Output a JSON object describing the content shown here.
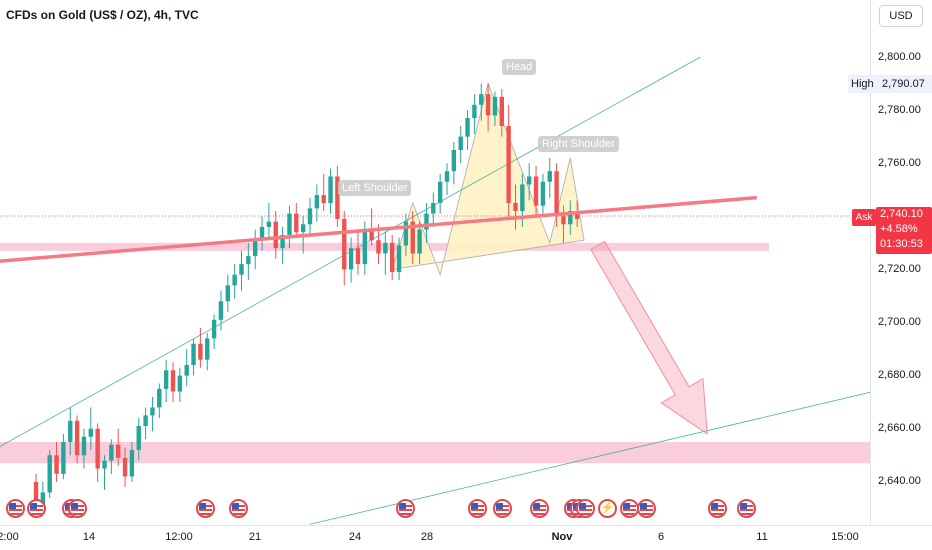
{
  "header": {
    "title": "CFDs on Gold (US$ / OZ), 4h, TVC"
  },
  "price_axis": {
    "currency": "USD",
    "ticks": [
      "2,800.00",
      "2,780.00",
      "2,760.00",
      "2,720.00",
      "2,700.00",
      "2,680.00",
      "2,660.00",
      "2,640.00"
    ],
    "high": {
      "label": "High",
      "value": "2,790.07"
    },
    "ask": {
      "label": "Ask",
      "price": "2,740.10",
      "change": "+4.58%",
      "countdown": "01:30:53"
    }
  },
  "time_axis": {
    "labels": [
      "2:00",
      "14",
      "12:00",
      "21",
      "24",
      "28",
      "Nov",
      "6",
      "11",
      "15:00"
    ],
    "bold_label": "Nov"
  },
  "annotations": {
    "head": "Head",
    "left_shoulder": "Left Shoulder",
    "right_shoulder": "Right Shoulder"
  },
  "event_icons": [
    "us-flag-icon",
    "us-flag-icon",
    "us-flag-icon",
    "us-flag-icon",
    "us-flag-icon",
    "us-flag-icon",
    "us-flag-icon",
    "us-flag-icon",
    "us-flag-icon",
    "us-flag-icon",
    "us-flag-icon",
    "us-flag-icon",
    "us-flag-icon",
    "lightning-icon",
    "us-flag-icon",
    "us-flag-icon",
    "us-flag-icon",
    "us-flag-icon"
  ],
  "colors": {
    "up": "#26a69a",
    "down": "#ef5350",
    "neckline": "#f47a84",
    "trendline": "#26a69a",
    "zone": "#f8bbd0",
    "pattern_fill": "#fff3c4",
    "arrow": "#f48fa0",
    "current_price_line": "#f23645"
  },
  "chart_data": {
    "type": "candlestick",
    "title": "CFDs on Gold (US$ / OZ), 4h, TVC",
    "y_ticks": [
      2640,
      2660,
      2680,
      2700,
      2720,
      2760,
      2780,
      2800
    ],
    "y_range": [
      2630,
      2812
    ],
    "current_price": 2740.1,
    "high": 2790.07,
    "patterns": [
      "Left Shoulder",
      "Head",
      "Right Shoulder"
    ],
    "candles": [
      [
        2640,
        2643,
        2628,
        2631
      ],
      [
        2631,
        2640,
        2630,
        2636
      ],
      [
        2636,
        2652,
        2634,
        2650
      ],
      [
        2650,
        2655,
        2640,
        2643
      ],
      [
        2643,
        2658,
        2641,
        2655
      ],
      [
        2655,
        2668,
        2650,
        2663
      ],
      [
        2663,
        2665,
        2647,
        2650
      ],
      [
        2650,
        2660,
        2645,
        2657
      ],
      [
        2657,
        2668,
        2652,
        2660
      ],
      [
        2660,
        2662,
        2640,
        2645
      ],
      [
        2645,
        2650,
        2637,
        2648
      ],
      [
        2648,
        2656,
        2643,
        2654
      ],
      [
        2654,
        2660,
        2646,
        2649
      ],
      [
        2649,
        2653,
        2638,
        2642
      ],
      [
        2642,
        2655,
        2640,
        2652
      ],
      [
        2652,
        2664,
        2648,
        2661
      ],
      [
        2661,
        2668,
        2656,
        2665
      ],
      [
        2665,
        2672,
        2659,
        2668
      ],
      [
        2668,
        2677,
        2664,
        2675
      ],
      [
        2675,
        2686,
        2670,
        2682
      ],
      [
        2682,
        2685,
        2670,
        2674
      ],
      [
        2674,
        2683,
        2670,
        2680
      ],
      [
        2680,
        2690,
        2676,
        2684
      ],
      [
        2684,
        2694,
        2680,
        2692
      ],
      [
        2692,
        2698,
        2683,
        2686
      ],
      [
        2686,
        2696,
        2682,
        2694
      ],
      [
        2694,
        2703,
        2690,
        2701
      ],
      [
        2701,
        2712,
        2697,
        2708
      ],
      [
        2708,
        2718,
        2704,
        2714
      ],
      [
        2714,
        2722,
        2709,
        2718
      ],
      [
        2718,
        2727,
        2712,
        2722
      ],
      [
        2722,
        2730,
        2716,
        2725
      ],
      [
        2725,
        2735,
        2720,
        2731
      ],
      [
        2731,
        2740,
        2727,
        2736
      ],
      [
        2736,
        2745,
        2731,
        2738
      ],
      [
        2738,
        2742,
        2724,
        2728
      ],
      [
        2728,
        2736,
        2722,
        2733
      ],
      [
        2733,
        2744,
        2728,
        2741
      ],
      [
        2741,
        2745,
        2732,
        2734
      ],
      [
        2734,
        2740,
        2726,
        2737
      ],
      [
        2737,
        2747,
        2733,
        2743
      ],
      [
        2743,
        2752,
        2738,
        2748
      ],
      [
        2748,
        2756,
        2742,
        2745
      ],
      [
        2745,
        2758,
        2741,
        2755
      ],
      [
        2755,
        2759,
        2736,
        2739
      ],
      [
        2739,
        2742,
        2714,
        2720
      ],
      [
        2720,
        2732,
        2715,
        2728
      ],
      [
        2728,
        2734,
        2718,
        2722
      ],
      [
        2722,
        2738,
        2718,
        2735
      ],
      [
        2735,
        2743,
        2729,
        2731
      ],
      [
        2731,
        2737,
        2722,
        2726
      ],
      [
        2726,
        2734,
        2718,
        2730
      ],
      [
        2730,
        2733,
        2716,
        2719
      ],
      [
        2719,
        2732,
        2716,
        2729
      ],
      [
        2729,
        2741,
        2725,
        2738
      ],
      [
        2738,
        2742,
        2722,
        2726
      ],
      [
        2726,
        2738,
        2722,
        2735
      ],
      [
        2735,
        2745,
        2730,
        2741
      ],
      [
        2741,
        2749,
        2736,
        2745
      ],
      [
        2745,
        2756,
        2741,
        2753
      ],
      [
        2753,
        2760,
        2748,
        2757
      ],
      [
        2757,
        2768,
        2752,
        2765
      ],
      [
        2765,
        2774,
        2760,
        2770
      ],
      [
        2770,
        2780,
        2765,
        2777
      ],
      [
        2777,
        2786,
        2771,
        2782
      ],
      [
        2782,
        2790,
        2776,
        2786
      ],
      [
        2786,
        2790,
        2772,
        2778
      ],
      [
        2778,
        2787,
        2774,
        2785
      ],
      [
        2785,
        2788,
        2770,
        2774
      ],
      [
        2774,
        2782,
        2740,
        2745
      ],
      [
        2745,
        2752,
        2735,
        2742
      ],
      [
        2742,
        2756,
        2736,
        2752
      ],
      [
        2752,
        2760,
        2746,
        2755
      ],
      [
        2755,
        2759,
        2740,
        2744
      ],
      [
        2744,
        2756,
        2740,
        2753
      ],
      [
        2753,
        2762,
        2747,
        2757
      ],
      [
        2757,
        2760,
        2736,
        2740
      ],
      [
        2740,
        2744,
        2730,
        2737
      ],
      [
        2737,
        2746,
        2733,
        2742
      ],
      [
        2742,
        2746,
        2736,
        2739
      ]
    ],
    "overlays": {
      "neckline": {
        "from": [
          -15,
          2721
        ],
        "to": [
          105,
          2747
        ]
      },
      "trend_upper": {
        "from": [
          -25,
          2625
        ],
        "to": [
          97,
          2800
        ]
      },
      "trend_lower": {
        "from": [
          40,
          2624
        ],
        "to": [
          165,
          2700
        ]
      },
      "zone_upper": {
        "x": [
          -15,
          107
        ],
        "y": [
          2727,
          2730
        ]
      },
      "zone_lower": {
        "x": [
          -58,
          140
        ],
        "y": [
          2647,
          2655
        ]
      },
      "arrow": {
        "from": [
          82,
          2729
        ],
        "to": [
          98,
          2658
        ]
      }
    }
  }
}
